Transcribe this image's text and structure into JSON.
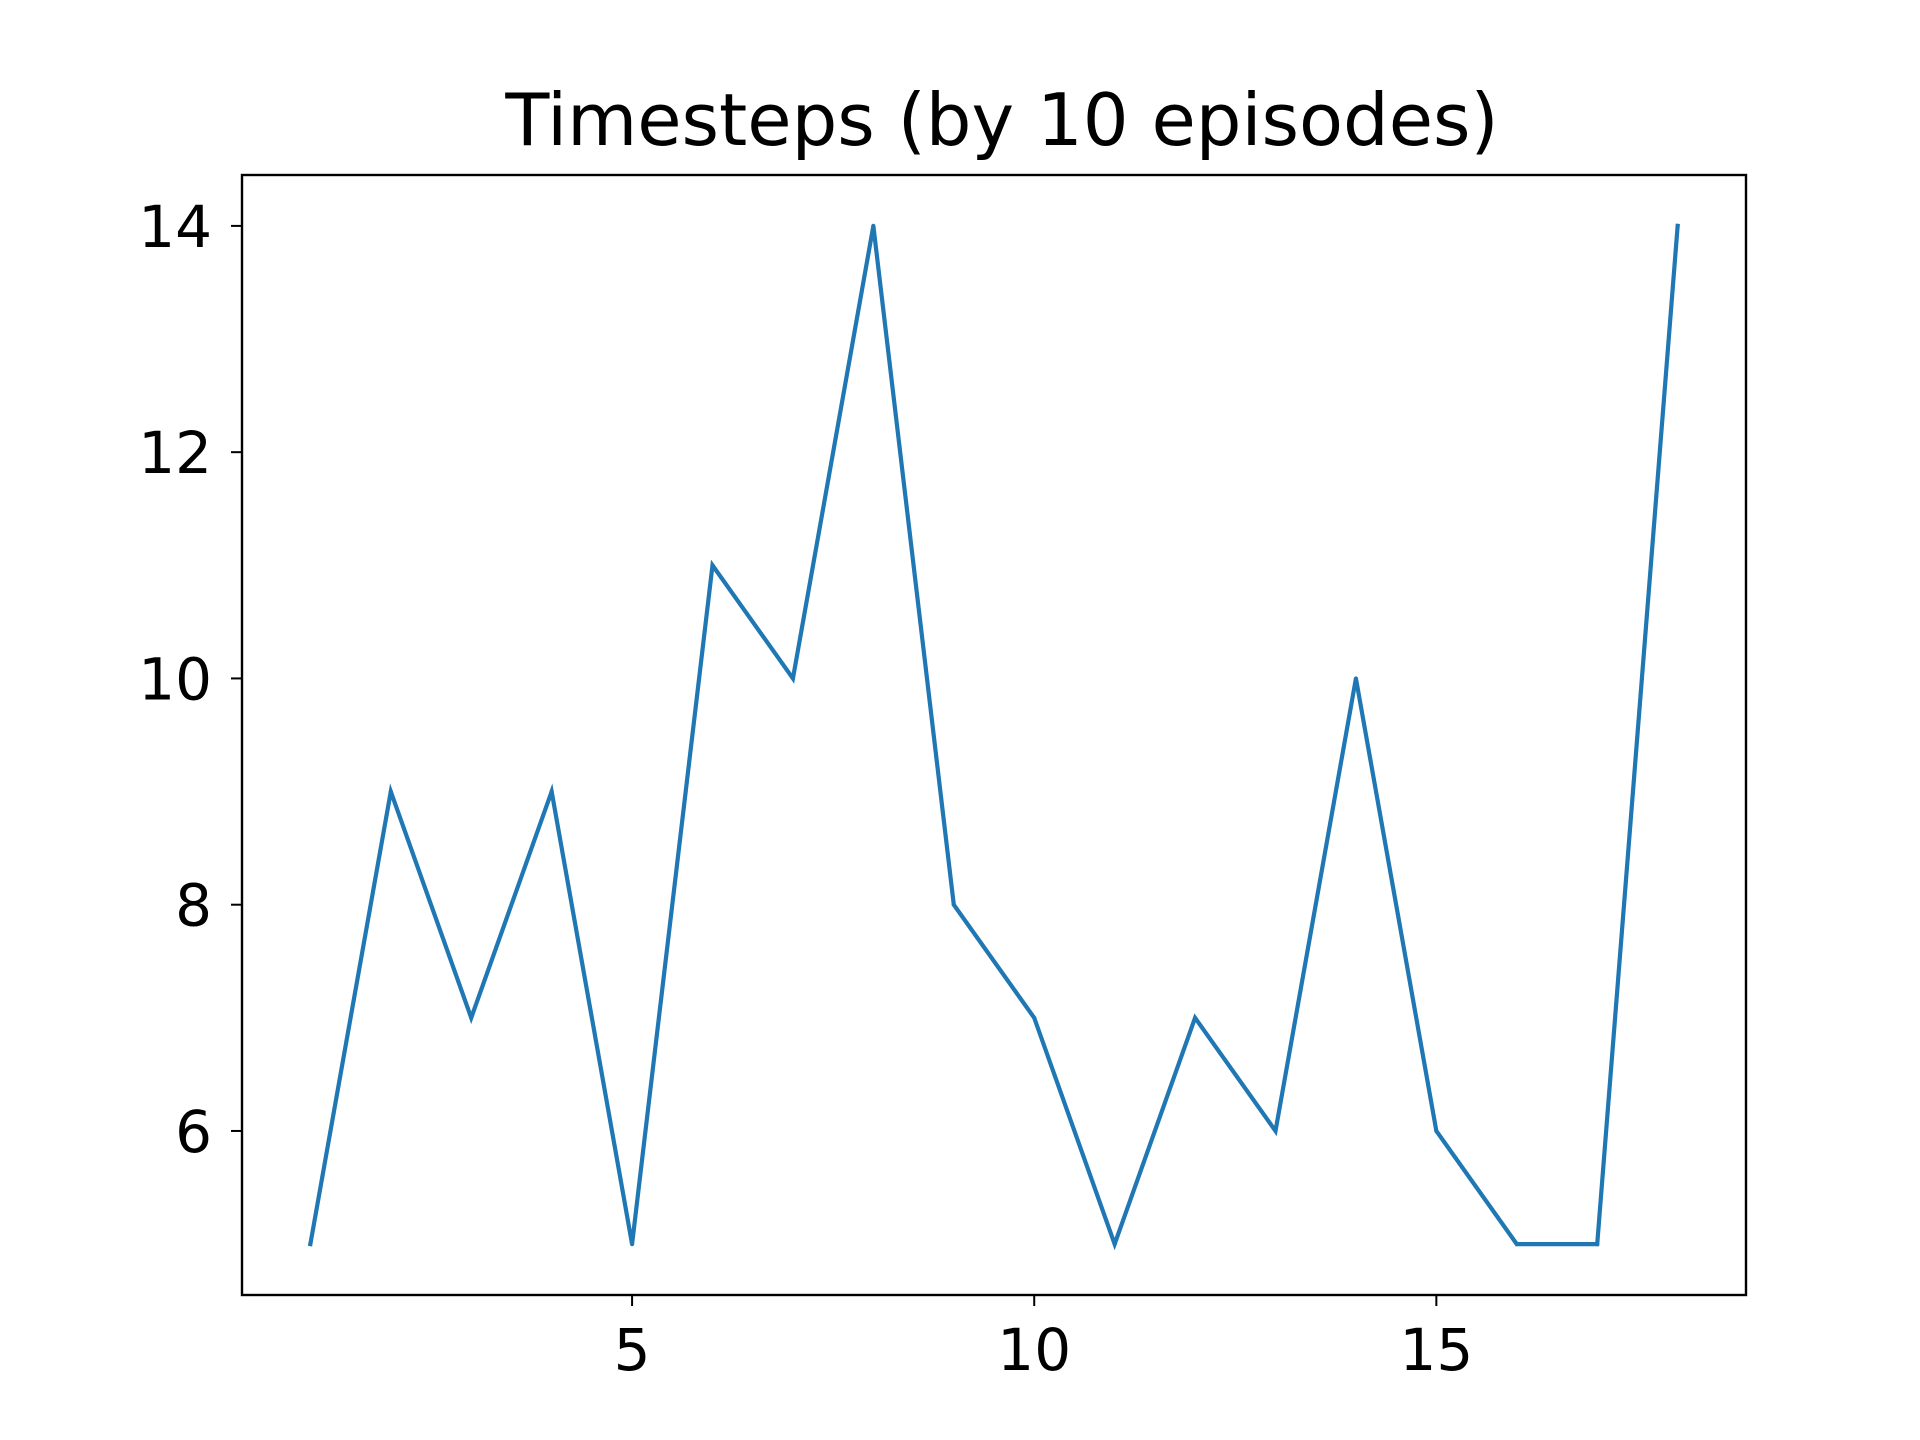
{
  "chart_data": {
    "type": "line",
    "title": "Timesteps (by 10 episodes)",
    "xlabel": "",
    "ylabel": "",
    "x": [
      1,
      2,
      3,
      4,
      5,
      6,
      7,
      8,
      9,
      10,
      11,
      12,
      13,
      14,
      15,
      16,
      17,
      18
    ],
    "series": [
      {
        "values": [
          5,
          9,
          7,
          9,
          5,
          11,
          10,
          14,
          8,
          7,
          5,
          7,
          6,
          10,
          6,
          5,
          5,
          14
        ],
        "color": "#1f77b4"
      }
    ],
    "xlim": [
      0.15,
      18.85
    ],
    "ylim": [
      4.55,
      14.45
    ],
    "xticks": [
      5,
      10,
      15
    ],
    "xtick_labels": [
      "5",
      "10",
      "15"
    ],
    "yticks": [
      6,
      8,
      10,
      12,
      14
    ],
    "ytick_labels": [
      "6",
      "8",
      "10",
      "12",
      "14"
    ],
    "grid": false,
    "legend": "none"
  }
}
